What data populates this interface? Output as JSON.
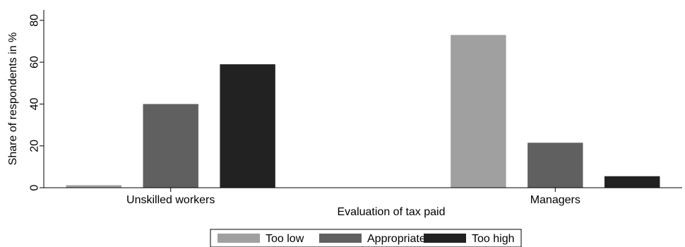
{
  "chart_data": {
    "type": "bar",
    "title": "",
    "xlabel": "Evaluation of tax paid",
    "ylabel": "Share of respondents in %",
    "ylim": [
      0,
      85
    ],
    "yticks": [
      0,
      20,
      40,
      60,
      80
    ],
    "categories": [
      "Unskilled workers",
      "Managers"
    ],
    "series": [
      {
        "name": "Too low",
        "color": "#a0a0a0",
        "values": [
          1.2,
          73
        ]
      },
      {
        "name": "Appropriate",
        "color": "#606060",
        "values": [
          40,
          21.5
        ]
      },
      {
        "name": "Too high",
        "color": "#222222",
        "values": [
          59,
          5.5
        ]
      }
    ],
    "grid": false,
    "legend_position": "bottom"
  }
}
